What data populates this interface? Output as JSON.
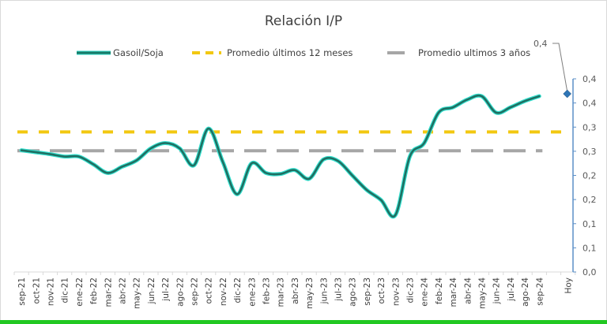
{
  "chart_data": {
    "type": "line",
    "title": "Relación I/P",
    "xlabel": "",
    "ylabel": "",
    "categories": [
      "sep-21",
      "oct-21",
      "nov-21",
      "dic-21",
      "ene-22",
      "feb-22",
      "mar-22",
      "abr-22",
      "may-22",
      "jun-22",
      "jul-22",
      "ago-22",
      "sep-22",
      "oct-22",
      "nov-22",
      "dic-22",
      "ene-23",
      "feb-23",
      "mar-23",
      "abr-23",
      "may-23",
      "jun-23",
      "jul-23",
      "ago-23",
      "sep-23",
      "oct-23",
      "nov-23",
      "dic-23",
      "ene-24",
      "feb-24",
      "mar-24",
      "abr-24",
      "may-24",
      "jun-24",
      "jul-24",
      "ago-24",
      "sep-24",
      "",
      "Hoy"
    ],
    "series": [
      {
        "name": "Gasoil/Soja",
        "color": "#1a8a78",
        "style": "solid",
        "values": [
          0.252,
          0.248,
          0.244,
          0.239,
          0.239,
          0.223,
          0.205,
          0.218,
          0.231,
          0.256,
          0.267,
          0.256,
          0.221,
          0.297,
          0.228,
          0.161,
          0.225,
          0.205,
          0.203,
          0.211,
          0.193,
          0.233,
          0.23,
          0.2,
          0.17,
          0.149,
          0.118,
          0.239,
          0.267,
          0.33,
          0.341,
          0.357,
          0.364,
          0.33,
          0.341,
          0.354,
          0.364,
          null,
          null
        ]
      },
      {
        "name": "Promedio últimos 12 meses",
        "color": "#f2c811",
        "style": "dashed",
        "constant": 0.29
      },
      {
        "name": "Promedio ultimos 3 años",
        "color": "#a6a6a6",
        "style": "dashed",
        "constant": 0.251
      }
    ],
    "hoy_point": {
      "category": "Hoy",
      "value": 0.369,
      "label": "0,4",
      "color": "#2e75b6"
    },
    "y_axis": {
      "side": "right",
      "ylim": [
        0,
        0.4
      ],
      "ticks": [
        0.0,
        0.05,
        0.1,
        0.15,
        0.2,
        0.25,
        0.3,
        0.35,
        0.4
      ],
      "tick_labels": [
        "0,0",
        "0,1",
        "0,1",
        "0,2",
        "0,2",
        "0,3",
        "0,3",
        "0,4",
        "0,4"
      ],
      "color": "#5b8fc7"
    },
    "grid": false,
    "legend_position": "top"
  }
}
